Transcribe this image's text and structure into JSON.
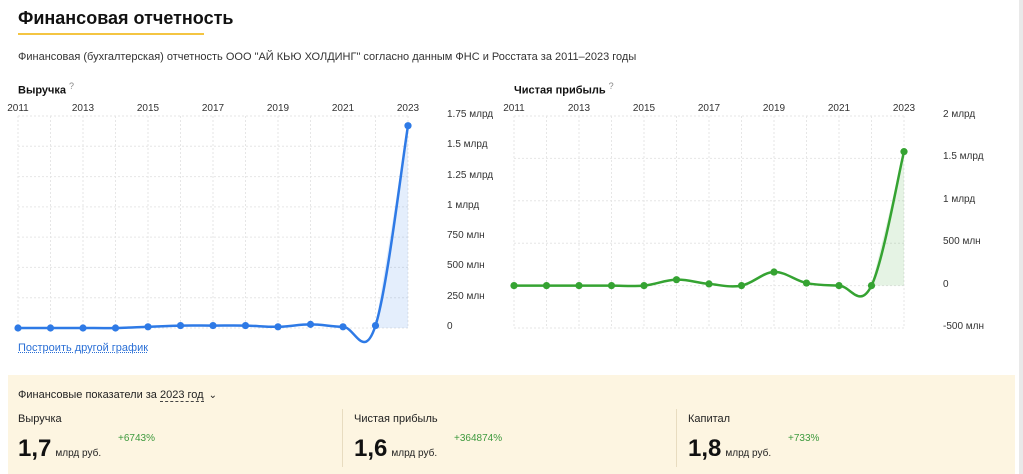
{
  "page": {
    "title": "Финансовая отчетность",
    "subtitle": "Финансовая (бухгалтерская) отчетность ООО \"АЙ КЬЮ ХОЛДИНГ\" согласно данным ФНС и Росстата за 2011–2023 годы",
    "other_chart_link": "Построить другой график",
    "accent_color": "#f4c542"
  },
  "chart_data": [
    {
      "type": "area",
      "title": "Выручка",
      "help_mark": "?",
      "x_tick_labels": [
        "2011",
        "2013",
        "2015",
        "2017",
        "2019",
        "2021",
        "2023"
      ],
      "y_tick_labels": [
        "1.75 млрд",
        "1.5 млрд",
        "1.25 млрд",
        "1 млрд",
        "750 млн",
        "500 млн",
        "250 млн",
        "0"
      ],
      "x": [
        2011,
        2012,
        2013,
        2014,
        2015,
        2016,
        2017,
        2018,
        2019,
        2020,
        2021,
        2022,
        2023
      ],
      "values": [
        0,
        0,
        0,
        0,
        0.01,
        0.02,
        0.02,
        0.02,
        0.01,
        0.03,
        0.01,
        0.02,
        1.67
      ],
      "unit": "млрд руб.",
      "ylim": [
        0,
        1.75
      ],
      "color": "#2e7ae6",
      "grid": true
    },
    {
      "type": "area",
      "title": "Чистая прибыль",
      "help_mark": "?",
      "x_tick_labels": [
        "2011",
        "2013",
        "2015",
        "2017",
        "2019",
        "2021",
        "2023"
      ],
      "y_tick_labels": [
        "2 млрд",
        "1.5 млрд",
        "1 млрд",
        "500 млн",
        "0",
        "-500 млн"
      ],
      "x": [
        2011,
        2012,
        2013,
        2014,
        2015,
        2016,
        2017,
        2018,
        2019,
        2020,
        2021,
        2022,
        2023
      ],
      "values": [
        0,
        0,
        0,
        0,
        0,
        0.07,
        0.02,
        0,
        0.16,
        0.03,
        0,
        0,
        1.58
      ],
      "unit": "млрд руб.",
      "ylim": [
        -0.5,
        2
      ],
      "color": "#35a332",
      "grid": true
    }
  ],
  "indicators": {
    "header_prefix": "Финансовые показатели за",
    "year": "2023 год",
    "chevron": "⌄",
    "items": [
      {
        "label": "Выручка",
        "value": "1,7",
        "unit": "млрд руб.",
        "delta": "+6743%"
      },
      {
        "label": "Чистая прибыль",
        "value": "1,6",
        "unit": "млрд руб.",
        "delta": "+364874%"
      },
      {
        "label": "Капитал",
        "value": "1,8",
        "unit": "млрд руб.",
        "delta": "+733%"
      }
    ],
    "delta_color": "#3e9a3e"
  }
}
